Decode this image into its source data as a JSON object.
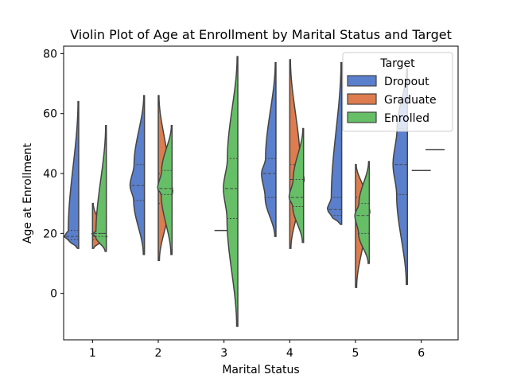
{
  "chart_data": {
    "type": "violin",
    "title": "Violin Plot of Age at Enrollment by Marital Status and Target",
    "xlabel": "Marital Status",
    "ylabel": "Age at Enrollment",
    "categories": [
      "1",
      "2",
      "3",
      "4",
      "5",
      "6"
    ],
    "yticks": [
      "0",
      "20",
      "40",
      "60",
      "80"
    ],
    "ylim": [
      -15.5,
      82.5
    ],
    "grid": false,
    "legend": {
      "title": "Target",
      "position": "top-right"
    },
    "colors": {
      "Dropout": "#5a7fcc",
      "Graduate": "#dd7d4f",
      "Enrolled": "#66bf66",
      "outline": "#444444"
    },
    "series": [
      {
        "name": "Dropout",
        "values": [
          {
            "category": "1",
            "min": 15,
            "q1": 18,
            "median": 19,
            "q3": 21,
            "max": 64
          },
          {
            "category": "2",
            "min": 13,
            "q1": 31,
            "median": 36,
            "q3": 43,
            "max": 66
          },
          null,
          {
            "category": "4",
            "min": 19,
            "q1": 32,
            "median": 40,
            "q3": 45,
            "max": 77
          },
          {
            "category": "5",
            "min": 23,
            "q1": 26,
            "median": 28,
            "q3": 32,
            "max": 77
          },
          {
            "category": "6",
            "min": 3,
            "q1": 33,
            "median": 43,
            "q3": 55,
            "max": 75
          }
        ]
      },
      {
        "name": "Graduate",
        "values": [
          {
            "category": "1",
            "min": 15,
            "q1": 18,
            "median": 19,
            "q3": 20,
            "max": 30
          },
          {
            "category": "2",
            "min": 11,
            "q1": 30,
            "median": 34,
            "q3": 40,
            "max": 66
          },
          {
            "category": "3",
            "min": 21,
            "q1": 21,
            "median": 21,
            "q3": 21,
            "max": 21
          },
          {
            "category": "4",
            "min": 15,
            "q1": 34,
            "median": 38,
            "q3": 43,
            "max": 78
          },
          {
            "category": "5",
            "min": 2,
            "q1": 25,
            "median": 27,
            "q3": 32,
            "max": 43
          },
          {
            "category": "6",
            "min": 41,
            "q1": 41,
            "median": 41,
            "q3": 41,
            "max": 41
          }
        ]
      },
      {
        "name": "Enrolled",
        "values": [
          {
            "category": "1",
            "min": 14,
            "q1": 19,
            "median": 20,
            "q3": 20,
            "max": 56
          },
          {
            "category": "2",
            "min": 13,
            "q1": 33,
            "median": 35,
            "q3": 41,
            "max": 56
          },
          {
            "category": "3",
            "min": -11,
            "q1": 25,
            "median": 35,
            "q3": 45,
            "max": 79
          },
          {
            "category": "4",
            "min": 17,
            "q1": 29,
            "median": 32,
            "q3": 38,
            "max": 55
          },
          {
            "category": "5",
            "min": 10,
            "q1": 20,
            "median": 26,
            "q3": 30,
            "max": 44
          },
          {
            "category": "6",
            "min": 48,
            "q1": 48,
            "median": 48,
            "q3": 48,
            "max": 48
          }
        ]
      }
    ]
  }
}
